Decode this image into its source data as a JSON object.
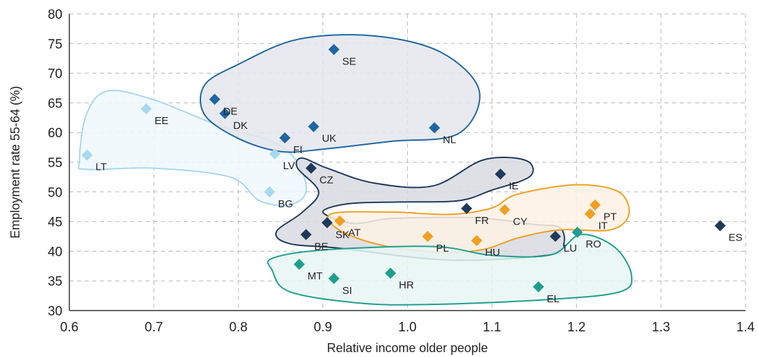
{
  "chart_data": {
    "type": "scatter",
    "xlabel": "Relative income older people",
    "ylabel": "Employment rate 55-64 (%)",
    "xlim": [
      0.6,
      1.4
    ],
    "ylim": [
      30,
      80
    ],
    "x_ticks": [
      "0.6",
      "0.7",
      "0.8",
      "0.9",
      "1.0",
      "1.1",
      "1.2",
      "1.3",
      "1.4"
    ],
    "y_ticks": [
      "30",
      "35",
      "40",
      "45",
      "50",
      "55",
      "60",
      "65",
      "70",
      "75",
      "80"
    ],
    "grid": true,
    "colors": {
      "dark_navy": "#1f3a5c",
      "blue": "#1f66a3",
      "light_blue": "#a8d8f0",
      "orange": "#f0a020",
      "teal": "#1e9e8e"
    },
    "points": [
      {
        "label": "SE",
        "x": 0.913,
        "y": 74,
        "color": "blue"
      },
      {
        "label": "DE",
        "x": 0.772,
        "y": 65.6,
        "color": "blue"
      },
      {
        "label": "DK",
        "x": 0.784,
        "y": 63.2,
        "color": "blue"
      },
      {
        "label": "UK",
        "x": 0.889,
        "y": 61,
        "color": "blue"
      },
      {
        "label": "FI",
        "x": 0.855,
        "y": 59.1,
        "color": "blue"
      },
      {
        "label": "NL",
        "x": 1.032,
        "y": 60.8,
        "color": "blue"
      },
      {
        "label": "EE",
        "x": 0.691,
        "y": 64,
        "color": "light_blue"
      },
      {
        "label": "LT",
        "x": 0.621,
        "y": 56.2,
        "color": "light_blue"
      },
      {
        "label": "LV",
        "x": 0.843,
        "y": 56.4,
        "color": "light_blue"
      },
      {
        "label": "BG",
        "x": 0.837,
        "y": 50,
        "color": "light_blue"
      },
      {
        "label": "CZ",
        "x": 0.886,
        "y": 54,
        "color": "dark_navy"
      },
      {
        "label": "IE",
        "x": 1.11,
        "y": 53,
        "color": "dark_navy"
      },
      {
        "label": "FR",
        "x": 1.07,
        "y": 47.2,
        "color": "dark_navy"
      },
      {
        "label": "SK",
        "x": 0.905,
        "y": 44.8,
        "color": "dark_navy"
      },
      {
        "label": "BE",
        "x": 0.88,
        "y": 42.8,
        "color": "dark_navy"
      },
      {
        "label": "LU",
        "x": 1.175,
        "y": 42.5,
        "color": "dark_navy"
      },
      {
        "label": "ES",
        "x": 1.37,
        "y": 44.3,
        "color": "dark_navy"
      },
      {
        "label": "AT",
        "x": 0.92,
        "y": 45.1,
        "color": "orange"
      },
      {
        "label": "CY",
        "x": 1.115,
        "y": 47,
        "color": "orange"
      },
      {
        "label": "PT",
        "x": 1.222,
        "y": 47.8,
        "color": "orange"
      },
      {
        "label": "IT",
        "x": 1.216,
        "y": 46.3,
        "color": "orange"
      },
      {
        "label": "HU",
        "x": 1.082,
        "y": 41.8,
        "color": "orange"
      },
      {
        "label": "PL",
        "x": 1.024,
        "y": 42.5,
        "color": "orange"
      },
      {
        "label": "RO",
        "x": 1.201,
        "y": 43.2,
        "color": "teal"
      },
      {
        "label": "MT",
        "x": 0.872,
        "y": 37.8,
        "color": "teal"
      },
      {
        "label": "SI",
        "x": 0.913,
        "y": 35.4,
        "color": "teal"
      },
      {
        "label": "HR",
        "x": 0.98,
        "y": 36.3,
        "color": "teal"
      },
      {
        "label": "EL",
        "x": 1.155,
        "y": 34,
        "color": "teal"
      }
    ]
  }
}
